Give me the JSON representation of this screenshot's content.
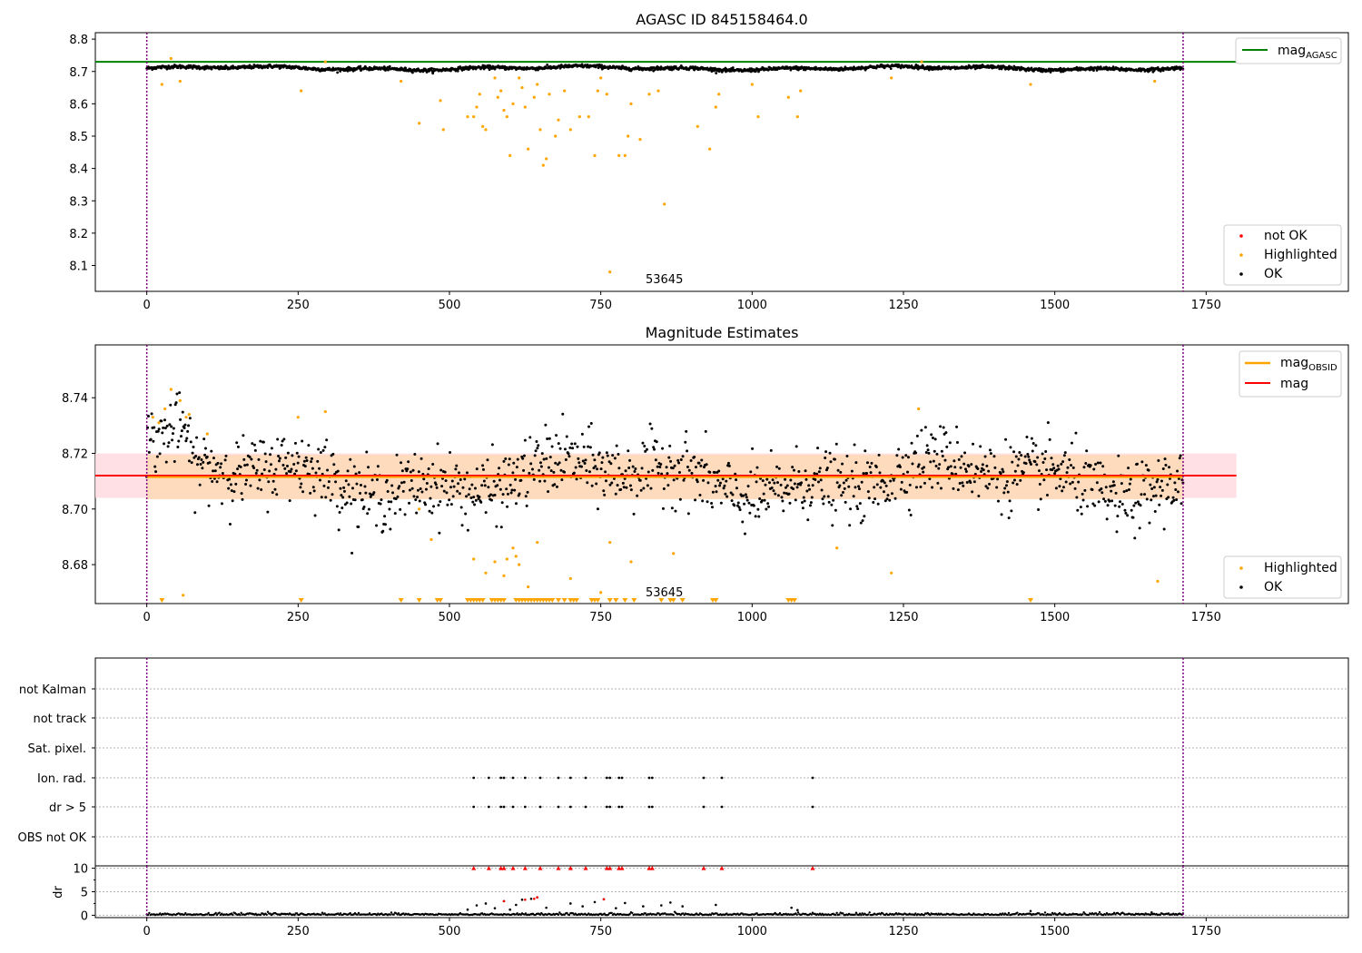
{
  "chart_data": [
    {
      "type": "scatter",
      "title": "AGASC ID 845158464.0",
      "xlim": [
        -85,
        1985
      ],
      "ylim": [
        8.02,
        8.82
      ],
      "xticks": [
        0,
        250,
        500,
        750,
        1000,
        1250,
        1500,
        1750
      ],
      "yticks": [
        8.1,
        8.2,
        8.3,
        8.4,
        8.5,
        8.6,
        8.7,
        8.8
      ],
      "ytick_labels": [
        "8.1",
        "8.2",
        "8.3",
        "8.4",
        "8.5",
        "8.6",
        "8.7",
        "8.8"
      ],
      "vlines": [
        0,
        1712
      ],
      "hline": {
        "name": "mag",
        "subscript": "AGASC",
        "value": 8.73,
        "color": "#008000"
      },
      "annotation": {
        "text": "53645",
        "x": 855
      },
      "colors": {
        "ok": "#000000",
        "highlighted": "#ffa500",
        "not_ok": "#ff0000",
        "vline": "#800080"
      },
      "ok_band": {
        "x_range": [
          0,
          1712
        ],
        "center": 8.71,
        "spread": 0.006
      },
      "highlighted_points": [
        [
          25,
          8.66
        ],
        [
          40,
          8.74
        ],
        [
          55,
          8.67
        ],
        [
          255,
          8.64
        ],
        [
          295,
          8.73
        ],
        [
          420,
          8.67
        ],
        [
          450,
          8.54
        ],
        [
          485,
          8.61
        ],
        [
          490,
          8.52
        ],
        [
          530,
          8.56
        ],
        [
          540,
          8.56
        ],
        [
          545,
          8.59
        ],
        [
          550,
          8.63
        ],
        [
          555,
          8.53
        ],
        [
          560,
          8.52
        ],
        [
          575,
          8.68
        ],
        [
          580,
          8.62
        ],
        [
          585,
          8.64
        ],
        [
          590,
          8.58
        ],
        [
          595,
          8.56
        ],
        [
          600,
          8.44
        ],
        [
          605,
          8.6
        ],
        [
          615,
          8.68
        ],
        [
          620,
          8.65
        ],
        [
          625,
          8.59
        ],
        [
          630,
          8.46
        ],
        [
          640,
          8.62
        ],
        [
          645,
          8.66
        ],
        [
          650,
          8.52
        ],
        [
          655,
          8.41
        ],
        [
          660,
          8.43
        ],
        [
          665,
          8.63
        ],
        [
          675,
          8.5
        ],
        [
          680,
          8.55
        ],
        [
          690,
          8.64
        ],
        [
          700,
          8.52
        ],
        [
          715,
          8.56
        ],
        [
          730,
          8.56
        ],
        [
          740,
          8.44
        ],
        [
          745,
          8.64
        ],
        [
          750,
          8.68
        ],
        [
          760,
          8.63
        ],
        [
          765,
          8.08
        ],
        [
          780,
          8.44
        ],
        [
          790,
          8.44
        ],
        [
          795,
          8.5
        ],
        [
          800,
          8.6
        ],
        [
          815,
          8.49
        ],
        [
          830,
          8.63
        ],
        [
          845,
          8.64
        ],
        [
          855,
          8.29
        ],
        [
          910,
          8.53
        ],
        [
          930,
          8.46
        ],
        [
          940,
          8.59
        ],
        [
          945,
          8.63
        ],
        [
          1000,
          8.66
        ],
        [
          1010,
          8.56
        ],
        [
          1060,
          8.62
        ],
        [
          1075,
          8.56
        ],
        [
          1080,
          8.64
        ],
        [
          1230,
          8.68
        ],
        [
          1280,
          8.73
        ],
        [
          1460,
          8.66
        ],
        [
          1665,
          8.67
        ]
      ],
      "legend": [
        {
          "label": "not OK",
          "color": "#ff0000"
        },
        {
          "label": "Highlighted",
          "color": "#ffa500"
        },
        {
          "label": "OK",
          "color": "#000000"
        }
      ]
    },
    {
      "type": "scatter",
      "title": "Magnitude Estimates",
      "xlim": [
        -85,
        1985
      ],
      "ylim": [
        8.666,
        8.759
      ],
      "xticks": [
        0,
        250,
        500,
        750,
        1000,
        1250,
        1500,
        1750
      ],
      "yticks": [
        8.68,
        8.7,
        8.72,
        8.74
      ],
      "ytick_labels": [
        "8.68",
        "8.70",
        "8.72",
        "8.74"
      ],
      "vlines": [
        0,
        1712
      ],
      "lines": [
        {
          "name": "mag",
          "subscript": "OBSID",
          "value": 8.7115,
          "x_range": [
            0,
            1712
          ],
          "color": "#ffa500",
          "band": [
            8.7035,
            8.7195
          ],
          "band_color": "#ffdab9"
        },
        {
          "name": "mag",
          "value": 8.712,
          "x_range": [
            -85,
            1800
          ],
          "color": "#ff0000",
          "band": [
            8.704,
            8.72
          ],
          "band_color": "#ffdde1"
        }
      ],
      "annotation": {
        "text": "53645",
        "x": 855
      },
      "colors": {
        "ok": "#000000",
        "highlighted": "#ffa500",
        "vline": "#800080"
      },
      "ok_band": {
        "x_range": [
          0,
          1712
        ],
        "center": 8.711,
        "spread": 0.006
      },
      "highlighted_points": [
        [
          10,
          8.733
        ],
        [
          20,
          8.731
        ],
        [
          30,
          8.736
        ],
        [
          40,
          8.743
        ],
        [
          55,
          8.739
        ],
        [
          60,
          8.669
        ],
        [
          65,
          8.733
        ],
        [
          70,
          8.734
        ],
        [
          100,
          8.727
        ],
        [
          250,
          8.733
        ],
        [
          295,
          8.735
        ],
        [
          450,
          8.7
        ],
        [
          470,
          8.689
        ],
        [
          540,
          8.682
        ],
        [
          560,
          8.677
        ],
        [
          575,
          8.681
        ],
        [
          590,
          8.676
        ],
        [
          595,
          8.682
        ],
        [
          605,
          8.686
        ],
        [
          610,
          8.683
        ],
        [
          615,
          8.68
        ],
        [
          630,
          8.672
        ],
        [
          645,
          8.688
        ],
        [
          700,
          8.675
        ],
        [
          750,
          8.67
        ],
        [
          765,
          8.688
        ],
        [
          800,
          8.681
        ],
        [
          870,
          8.684
        ],
        [
          1140,
          8.686
        ],
        [
          1230,
          8.677
        ],
        [
          1275,
          8.736
        ],
        [
          1670,
          8.674
        ]
      ],
      "below_markers": [
        25,
        255,
        420,
        450,
        480,
        485,
        530,
        535,
        540,
        545,
        550,
        555,
        570,
        575,
        580,
        585,
        590,
        610,
        615,
        620,
        625,
        630,
        635,
        640,
        645,
        650,
        655,
        660,
        665,
        670,
        680,
        690,
        700,
        705,
        710,
        735,
        740,
        745,
        765,
        775,
        790,
        805,
        850,
        865,
        870,
        885,
        935,
        940,
        1060,
        1065,
        1070,
        1460
      ],
      "legend": [
        {
          "label": "Highlighted",
          "color": "#ffa500"
        },
        {
          "label": "OK",
          "color": "#000000"
        }
      ]
    },
    {
      "type": "scatter",
      "title": "",
      "xlim": [
        -85,
        1985
      ],
      "xticks": [
        0,
        250,
        500,
        750,
        1000,
        1250,
        1500,
        1750
      ],
      "vlines": [
        0,
        1712
      ],
      "flag_rows": [
        "not Kalman",
        "not track",
        "Sat. pixel.",
        "Ion. rad.",
        "dr > 5",
        "OBS not OK"
      ],
      "flag_points": {
        "Ion. rad.": [
          540,
          565,
          585,
          590,
          605,
          625,
          650,
          680,
          700,
          725,
          760,
          765,
          780,
          785,
          830,
          835,
          920,
          950,
          1100
        ],
        "dr > 5": [
          540,
          565,
          585,
          590,
          605,
          625,
          650,
          680,
          700,
          725,
          760,
          765,
          780,
          785,
          830,
          835,
          920,
          950,
          1100
        ]
      },
      "dr_panel": {
        "ylabel": "dr",
        "ylim": [
          -0.5,
          10.5
        ],
        "yticks": [
          0,
          5,
          10
        ],
        "ytick_labels": [
          "0",
          "5",
          "10"
        ],
        "clipped_at_10": [
          540,
          565,
          585,
          590,
          605,
          625,
          650,
          680,
          700,
          725,
          760,
          765,
          780,
          785,
          830,
          835,
          920,
          950,
          1100
        ],
        "points": [
          [
            530,
            1.2
          ],
          [
            545,
            2.1
          ],
          [
            560,
            2.5
          ],
          [
            575,
            1.5
          ],
          [
            590,
            3.0
          ],
          [
            600,
            1.2
          ],
          [
            610,
            2.2
          ],
          [
            620,
            3.3
          ],
          [
            635,
            3.5
          ],
          [
            645,
            3.8
          ],
          [
            660,
            1.6
          ],
          [
            700,
            2.5
          ],
          [
            720,
            1.9
          ],
          [
            740,
            2.8
          ],
          [
            755,
            3.4
          ],
          [
            775,
            1.5
          ],
          [
            790,
            2.6
          ],
          [
            820,
            1.9
          ],
          [
            850,
            2.1
          ],
          [
            865,
            2.7
          ],
          [
            885,
            1.9
          ],
          [
            940,
            2.2
          ],
          [
            1065,
            1.6
          ],
          [
            1075,
            1.1
          ],
          [
            1460,
            0.9
          ],
          [
            1660,
            0.6
          ]
        ],
        "red_points": [
          [
            590,
            3.0
          ],
          [
            625,
            3.3
          ],
          [
            640,
            3.5
          ],
          [
            645,
            3.8
          ],
          [
            755,
            3.4
          ]
        ]
      }
    }
  ]
}
